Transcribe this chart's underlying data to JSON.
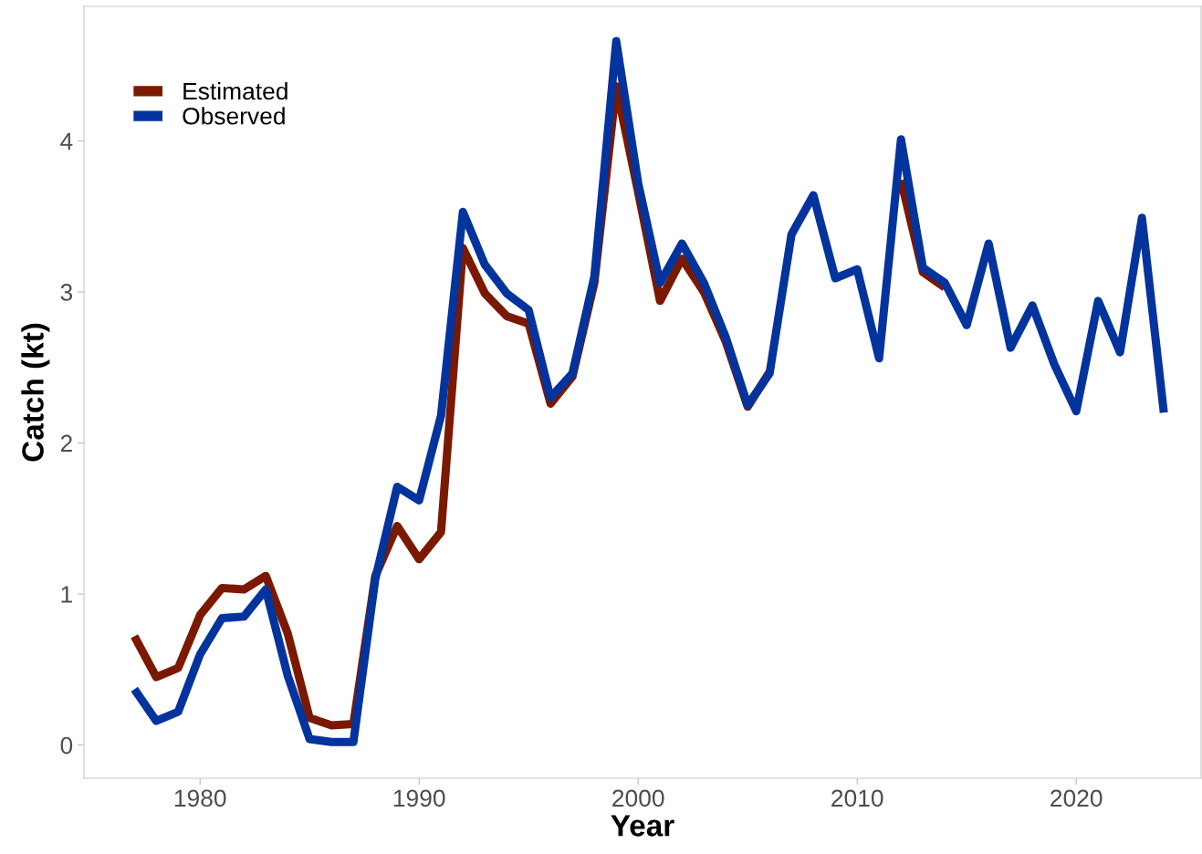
{
  "chart_data": {
    "type": "line",
    "xlabel": "Year",
    "ylabel": "Catch (kt)",
    "x": [
      1977,
      1978,
      1979,
      1980,
      1981,
      1982,
      1983,
      1984,
      1985,
      1986,
      1987,
      1988,
      1989,
      1990,
      1991,
      1992,
      1993,
      1994,
      1995,
      1996,
      1997,
      1998,
      1999,
      2000,
      2001,
      2002,
      2003,
      2004,
      2005,
      2006,
      2007,
      2008,
      2009,
      2010,
      2011,
      2012,
      2013,
      2014,
      2015,
      2016,
      2017,
      2018,
      2019,
      2020,
      2021,
      2022,
      2023,
      2024
    ],
    "series": [
      {
        "name": "Estimated",
        "color": "#7b1800",
        "values": [
          0.72,
          0.45,
          0.51,
          0.86,
          1.04,
          1.03,
          1.12,
          0.74,
          0.18,
          0.13,
          0.14,
          1.12,
          1.45,
          1.23,
          1.41,
          3.29,
          2.99,
          2.84,
          2.79,
          2.26,
          2.44,
          3.06,
          4.36,
          3.66,
          2.94,
          3.22,
          3.0,
          2.67,
          2.24,
          2.47,
          null,
          null,
          null,
          null,
          null,
          3.74,
          3.13,
          3.03,
          null,
          null,
          null,
          null,
          null,
          null,
          null,
          null,
          null,
          null
        ]
      },
      {
        "name": "Observed",
        "color": "#03339c",
        "values": [
          0.37,
          0.16,
          0.22,
          0.6,
          0.84,
          0.85,
          1.03,
          0.46,
          0.04,
          0.02,
          0.02,
          1.1,
          1.71,
          1.62,
          2.18,
          3.53,
          3.18,
          2.99,
          2.88,
          2.3,
          2.46,
          3.1,
          4.66,
          3.72,
          3.06,
          3.32,
          3.06,
          2.7,
          2.25,
          2.46,
          3.38,
          3.64,
          3.09,
          3.15,
          2.56,
          4.01,
          3.16,
          3.06,
          2.78,
          3.32,
          2.63,
          2.91,
          2.52,
          2.21,
          2.94,
          2.6,
          3.49,
          2.2
        ]
      }
    ],
    "xlim": [
      1974.7,
      2025.7
    ],
    "xticks": [
      1980,
      1990,
      2000,
      2010,
      2020
    ],
    "ylim": [
      -0.22,
      4.89
    ],
    "yticks": [
      0,
      1,
      2,
      3,
      4
    ],
    "grid": false,
    "legend": "top left",
    "line_style": "solid",
    "marker": "none"
  }
}
